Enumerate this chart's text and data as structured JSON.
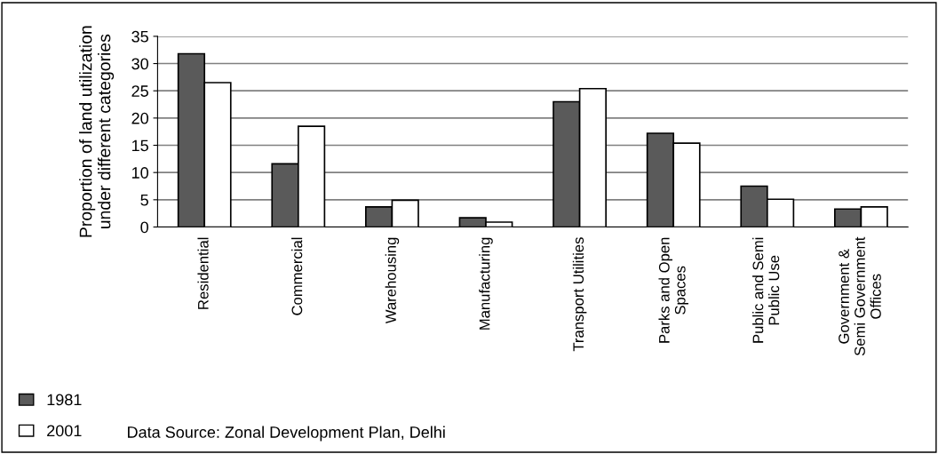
{
  "chart_data": {
    "type": "bar",
    "ylabel": "Proportion of land utilization\nunder different categories",
    "categories": [
      "Residential",
      "Commercial",
      "Warehousing",
      "Manufacturing",
      "Transport Utilities",
      "Parks and Open\nSpaces",
      "Public and Semi\nPublic Use",
      "Government &\nSemi Government\nOffices"
    ],
    "series": [
      {
        "name": "1981",
        "color": "#5a5a5a",
        "values": [
          31.8,
          11.6,
          3.7,
          1.7,
          23.0,
          17.2,
          7.5,
          3.3
        ]
      },
      {
        "name": "2001",
        "color": "#ffffff",
        "values": [
          26.5,
          18.5,
          4.9,
          0.9,
          25.4,
          15.4,
          5.1,
          3.7
        ]
      }
    ],
    "ylim": [
      0,
      35
    ],
    "yticks": [
      0,
      5,
      10,
      15,
      20,
      25,
      30,
      35
    ],
    "grid": "y",
    "legend": "bottom left",
    "annotations": [
      "Data Source: Zonal Development Plan, Delhi"
    ]
  }
}
